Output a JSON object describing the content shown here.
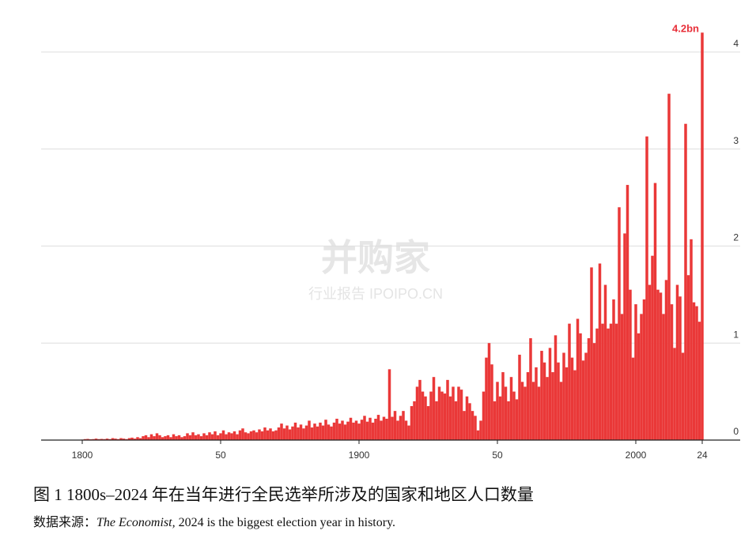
{
  "chart_data": {
    "type": "bar",
    "x": [
      1800,
      1801,
      1802,
      1803,
      1804,
      1805,
      1806,
      1807,
      1808,
      1809,
      1810,
      1811,
      1812,
      1813,
      1814,
      1815,
      1816,
      1817,
      1818,
      1819,
      1820,
      1821,
      1822,
      1823,
      1824,
      1825,
      1826,
      1827,
      1828,
      1829,
      1830,
      1831,
      1832,
      1833,
      1834,
      1835,
      1836,
      1837,
      1838,
      1839,
      1840,
      1841,
      1842,
      1843,
      1844,
      1845,
      1846,
      1847,
      1848,
      1849,
      1850,
      1851,
      1852,
      1853,
      1854,
      1855,
      1856,
      1857,
      1858,
      1859,
      1860,
      1861,
      1862,
      1863,
      1864,
      1865,
      1866,
      1867,
      1868,
      1869,
      1870,
      1871,
      1872,
      1873,
      1874,
      1875,
      1876,
      1877,
      1878,
      1879,
      1880,
      1881,
      1882,
      1883,
      1884,
      1885,
      1886,
      1887,
      1888,
      1889,
      1890,
      1891,
      1892,
      1893,
      1894,
      1895,
      1896,
      1897,
      1898,
      1899,
      1900,
      1901,
      1902,
      1903,
      1904,
      1905,
      1906,
      1907,
      1908,
      1909,
      1910,
      1911,
      1912,
      1913,
      1914,
      1915,
      1916,
      1917,
      1918,
      1919,
      1920,
      1921,
      1922,
      1923,
      1924,
      1925,
      1926,
      1927,
      1928,
      1929,
      1930,
      1931,
      1932,
      1933,
      1934,
      1935,
      1936,
      1937,
      1938,
      1939,
      1940,
      1941,
      1942,
      1943,
      1944,
      1945,
      1946,
      1947,
      1948,
      1949,
      1950,
      1951,
      1952,
      1953,
      1954,
      1955,
      1956,
      1957,
      1958,
      1959,
      1960,
      1961,
      1962,
      1963,
      1964,
      1965,
      1966,
      1967,
      1968,
      1969,
      1970,
      1971,
      1972,
      1973,
      1974,
      1975,
      1976,
      1977,
      1978,
      1979,
      1980,
      1981,
      1982,
      1983,
      1984,
      1985,
      1986,
      1987,
      1988,
      1989,
      1990,
      1991,
      1992,
      1993,
      1994,
      1995,
      1996,
      1997,
      1998,
      1999,
      2000,
      2001,
      2002,
      2003,
      2004,
      2005,
      2006,
      2007,
      2008,
      2009,
      2010,
      2011,
      2012,
      2013,
      2014,
      2015,
      2016,
      2017,
      2018,
      2019,
      2020,
      2021,
      2022,
      2023,
      2024
    ],
    "values": [
      0.005,
      0.01,
      0.012,
      0.008,
      0.01,
      0.015,
      0.01,
      0.012,
      0.01,
      0.015,
      0.01,
      0.02,
      0.015,
      0.01,
      0.02,
      0.015,
      0.01,
      0.02,
      0.025,
      0.015,
      0.03,
      0.02,
      0.04,
      0.05,
      0.03,
      0.06,
      0.04,
      0.07,
      0.05,
      0.03,
      0.04,
      0.05,
      0.03,
      0.06,
      0.04,
      0.05,
      0.03,
      0.04,
      0.07,
      0.05,
      0.08,
      0.05,
      0.06,
      0.04,
      0.07,
      0.05,
      0.08,
      0.06,
      0.09,
      0.05,
      0.07,
      0.1,
      0.06,
      0.08,
      0.07,
      0.09,
      0.06,
      0.1,
      0.12,
      0.08,
      0.07,
      0.09,
      0.1,
      0.08,
      0.11,
      0.09,
      0.13,
      0.1,
      0.12,
      0.09,
      0.1,
      0.13,
      0.17,
      0.12,
      0.15,
      0.11,
      0.14,
      0.18,
      0.13,
      0.16,
      0.12,
      0.15,
      0.2,
      0.13,
      0.17,
      0.14,
      0.18,
      0.15,
      0.21,
      0.16,
      0.14,
      0.18,
      0.22,
      0.17,
      0.2,
      0.16,
      0.19,
      0.23,
      0.18,
      0.2,
      0.17,
      0.21,
      0.25,
      0.19,
      0.23,
      0.18,
      0.22,
      0.26,
      0.2,
      0.24,
      0.22,
      0.73,
      0.24,
      0.3,
      0.2,
      0.25,
      0.3,
      0.2,
      0.15,
      0.35,
      0.4,
      0.55,
      0.62,
      0.5,
      0.45,
      0.35,
      0.5,
      0.65,
      0.4,
      0.55,
      0.5,
      0.48,
      0.62,
      0.45,
      0.55,
      0.4,
      0.55,
      0.52,
      0.3,
      0.45,
      0.38,
      0.3,
      0.25,
      0.1,
      0.2,
      0.5,
      0.85,
      1.0,
      0.78,
      0.4,
      0.6,
      0.45,
      0.7,
      0.55,
      0.4,
      0.65,
      0.5,
      0.42,
      0.88,
      0.6,
      0.55,
      0.7,
      1.05,
      0.6,
      0.75,
      0.55,
      0.92,
      0.8,
      0.65,
      0.95,
      0.7,
      1.08,
      0.8,
      0.6,
      0.9,
      0.75,
      1.2,
      0.85,
      0.72,
      1.25,
      1.1,
      0.82,
      0.9,
      1.05,
      1.78,
      1.0,
      1.15,
      1.82,
      1.2,
      1.6,
      1.15,
      1.2,
      1.45,
      1.2,
      2.4,
      1.3,
      2.13,
      2.63,
      1.55,
      0.85,
      1.4,
      1.1,
      1.3,
      1.45,
      3.13,
      1.6,
      1.9,
      2.65,
      1.55,
      1.52,
      1.3,
      1.65,
      3.57,
      1.4,
      0.95,
      1.6,
      1.48,
      0.9,
      3.26,
      1.7,
      2.07,
      1.42,
      1.38,
      1.22,
      4.2
    ],
    "value_labels": [
      null,
      null,
      null,
      null,
      null,
      null,
      null,
      null,
      null,
      null,
      null,
      null,
      null,
      null,
      null,
      null,
      null,
      null,
      null,
      null,
      null,
      null,
      null,
      null,
      null,
      null,
      null,
      null,
      null,
      null,
      null,
      null,
      null,
      null,
      null,
      null,
      null,
      null,
      null,
      null,
      null,
      null,
      null,
      null,
      null,
      null,
      null,
      null,
      null,
      null,
      null,
      null,
      null,
      null,
      null,
      null,
      null,
      null,
      null,
      null,
      null,
      null,
      null,
      null,
      null,
      null,
      null,
      null,
      null,
      null,
      null,
      null,
      null,
      null,
      null,
      null,
      null,
      null,
      null,
      null,
      null,
      null,
      null,
      null,
      null,
      null,
      null,
      null,
      null,
      null,
      null,
      null,
      null,
      null,
      null,
      null,
      null,
      null,
      null,
      null,
      null,
      null,
      null,
      null,
      null,
      null,
      null,
      null,
      null,
      null,
      null,
      null,
      null,
      null,
      null,
      null,
      null,
      null,
      null,
      null,
      null,
      null,
      null,
      null,
      null,
      null,
      null,
      null,
      null,
      null,
      null,
      null,
      null,
      null,
      null,
      null,
      null,
      null,
      null,
      null,
      null,
      null,
      null,
      null,
      null,
      null,
      null,
      null,
      null,
      null,
      null,
      null,
      null,
      null,
      null,
      null,
      null,
      null,
      null,
      null,
      null,
      null,
      null,
      null,
      null,
      null,
      null,
      null,
      null,
      null,
      null,
      null,
      null,
      null,
      null,
      null,
      null,
      null,
      null,
      null,
      null,
      null,
      null,
      null,
      null,
      null,
      null,
      null,
      null,
      null,
      null,
      null,
      null,
      null,
      null,
      null,
      null,
      null,
      null,
      null,
      null,
      null,
      null,
      null,
      null,
      null,
      null,
      null,
      null,
      null,
      null,
      null,
      null,
      null,
      null,
      null,
      null,
      null,
      null,
      null,
      null,
      null,
      null,
      null,
      "4.2bn"
    ],
    "color": "#ea3838",
    "label_color": "#e8303a",
    "xlim": [
      1786,
      2031
    ],
    "xticks": [
      1800,
      {
        "value": 1850,
        "label": "50"
      },
      1900,
      {
        "value": 1950,
        "label": "50"
      },
      2000,
      {
        "value": 2024,
        "label": "24"
      }
    ],
    "ylim": [
      0,
      4.3
    ],
    "yticks": [
      0,
      1,
      2,
      3,
      4
    ],
    "grid": true,
    "y_axis_side": "right",
    "watermark": {
      "brand": "并购家",
      "sub": "行业报告 IPOIPO.CN"
    },
    "caption": "图 1 1800s–2024 年在当年进行全民选举所涉及的国家和地区人口数量",
    "source_label": "数据来源：",
    "source_publication": "The Economist,",
    "source_rest": " 2024 is the biggest election year in history."
  }
}
